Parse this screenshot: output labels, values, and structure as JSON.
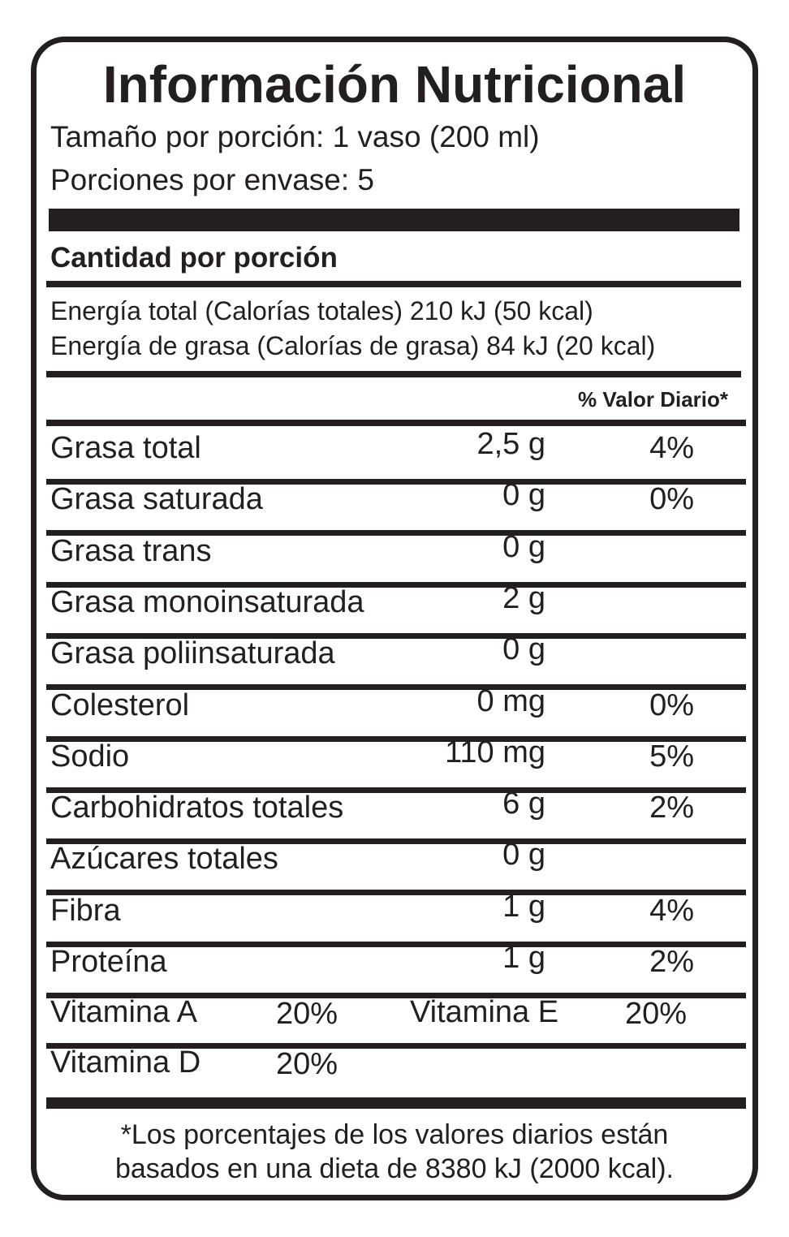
{
  "title": "Información Nutricional",
  "serving_size": "Tamaño por porción: 1 vaso (200 ml)",
  "servings": "Porciones por envase: 5",
  "amount_header": "Cantidad por porción",
  "energy": [
    "Energía total (Calorías totales) 210 kJ (50 kcal)",
    "Energía de grasa (Calorías de grasa) 84 kJ (20 kcal)"
  ],
  "dv_header": "% Valor Diario*",
  "nutrients": [
    {
      "name": "Grasa total",
      "amount": "2,5 g",
      "dv": "4%"
    },
    {
      "name": "Grasa saturada",
      "amount": "0 g",
      "dv": "0%"
    },
    {
      "name": "Grasa trans",
      "amount": "0 g"
    },
    {
      "name": "Grasa monoinsaturada",
      "amount": "2 g"
    },
    {
      "name": "Grasa poliinsaturada",
      "amount": "0 g"
    },
    {
      "name": "Colesterol",
      "amount": "0 mg",
      "dv": "0%"
    },
    {
      "name": "Sodio",
      "amount": "110 mg",
      "dv": "5%"
    },
    {
      "name": "Carbohidratos totales",
      "amount": "6 g",
      "dv": "2%"
    },
    {
      "name": "Azúcares totales",
      "amount": "0 g"
    },
    {
      "name": "Fibra",
      "amount": "1 g",
      "dv": "4%"
    },
    {
      "name": "Proteína",
      "amount": "1 g",
      "dv": "2%"
    }
  ],
  "vitamins": [
    {
      "name": "Vitamina A",
      "value": "20%"
    },
    {
      "name": "Vitamina E",
      "value": "20%"
    },
    {
      "name": "Vitamina D",
      "value": "20%"
    }
  ],
  "footnote": [
    "*Los porcentajes de los valores diarios están",
    "basados en una dieta de 8380 kJ (2000 kcal)."
  ]
}
